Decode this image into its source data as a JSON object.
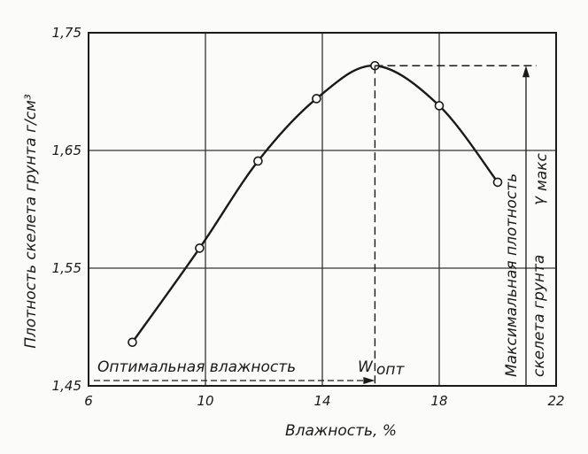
{
  "chart_data": {
    "type": "line",
    "xlabel": "Влажность, %",
    "ylabel": "Плотность скелета грунта г/см³",
    "xlim": [
      6,
      22
    ],
    "ylim": [
      1.45,
      1.75
    ],
    "x_ticks": [
      "6",
      "10",
      "14",
      "18",
      "22"
    ],
    "y_ticks": [
      "1,45",
      "1,55",
      "1,65",
      "1,75"
    ],
    "grid": true,
    "series": [
      {
        "values_x": [
          7.5,
          9.8,
          11.8,
          13.8,
          15.8,
          18.0,
          20.0
        ],
        "values_y": [
          1.487,
          1.567,
          1.641,
          1.694,
          1.722,
          1.688,
          1.623
        ]
      }
    ],
    "annotations": {
      "optimal_moisture_label": "Оптимальная влажность",
      "w_opt_symbol": "W",
      "w_opt_subscript": "опт",
      "w_opt_value": 15.8,
      "max_density_line1": "Максимальная плотность",
      "max_density_line2": "скелета грунта",
      "max_density_symbol": "γ",
      "max_density_subscript": "макс",
      "max_density_value": 1.722
    }
  }
}
